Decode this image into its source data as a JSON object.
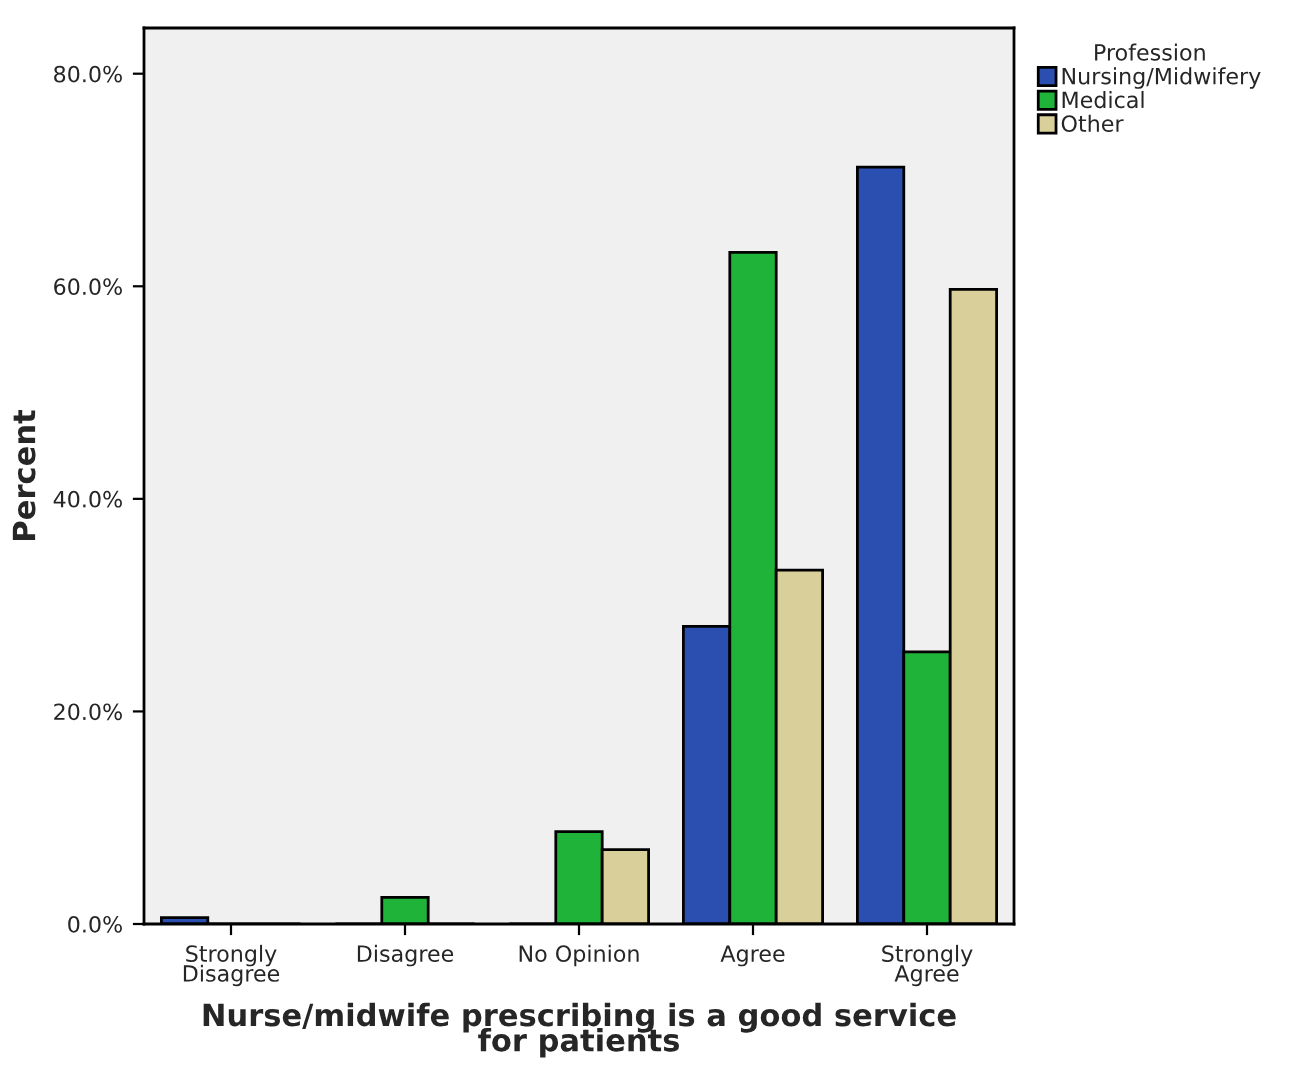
{
  "chart_data": {
    "type": "bar",
    "xlabel": "Nurse/midwife prescribing is a good service\nfor patients",
    "ylabel": "Percent",
    "legend_title": "Profession",
    "legend": "top right",
    "grid": false,
    "categories": [
      "Strongly\nDisagree",
      "Disagree",
      "No Opinion",
      "Agree",
      "Strongly\nAgree"
    ],
    "series": [
      {
        "name": "Nursing/Midwifery",
        "color": "#2a4fb0",
        "values": [
          0.6,
          0,
          0,
          28.0,
          71.2
        ]
      },
      {
        "name": "Medical",
        "color": "#1fb33a",
        "values": [
          0,
          2.5,
          8.7,
          63.2,
          25.6
        ]
      },
      {
        "name": "Other",
        "color": "#d8cf9a",
        "values": [
          0,
          0,
          7.0,
          33.3,
          59.7
        ]
      }
    ],
    "ylim": [
      0,
      84.3
    ],
    "yticks": [
      {
        "value": 0,
        "label": "0.0%"
      },
      {
        "value": 20,
        "label": "20.0%"
      },
      {
        "value": 40,
        "label": "40.0%"
      },
      {
        "value": 60,
        "label": "60.0%"
      },
      {
        "value": 80,
        "label": "80.0%"
      }
    ]
  }
}
